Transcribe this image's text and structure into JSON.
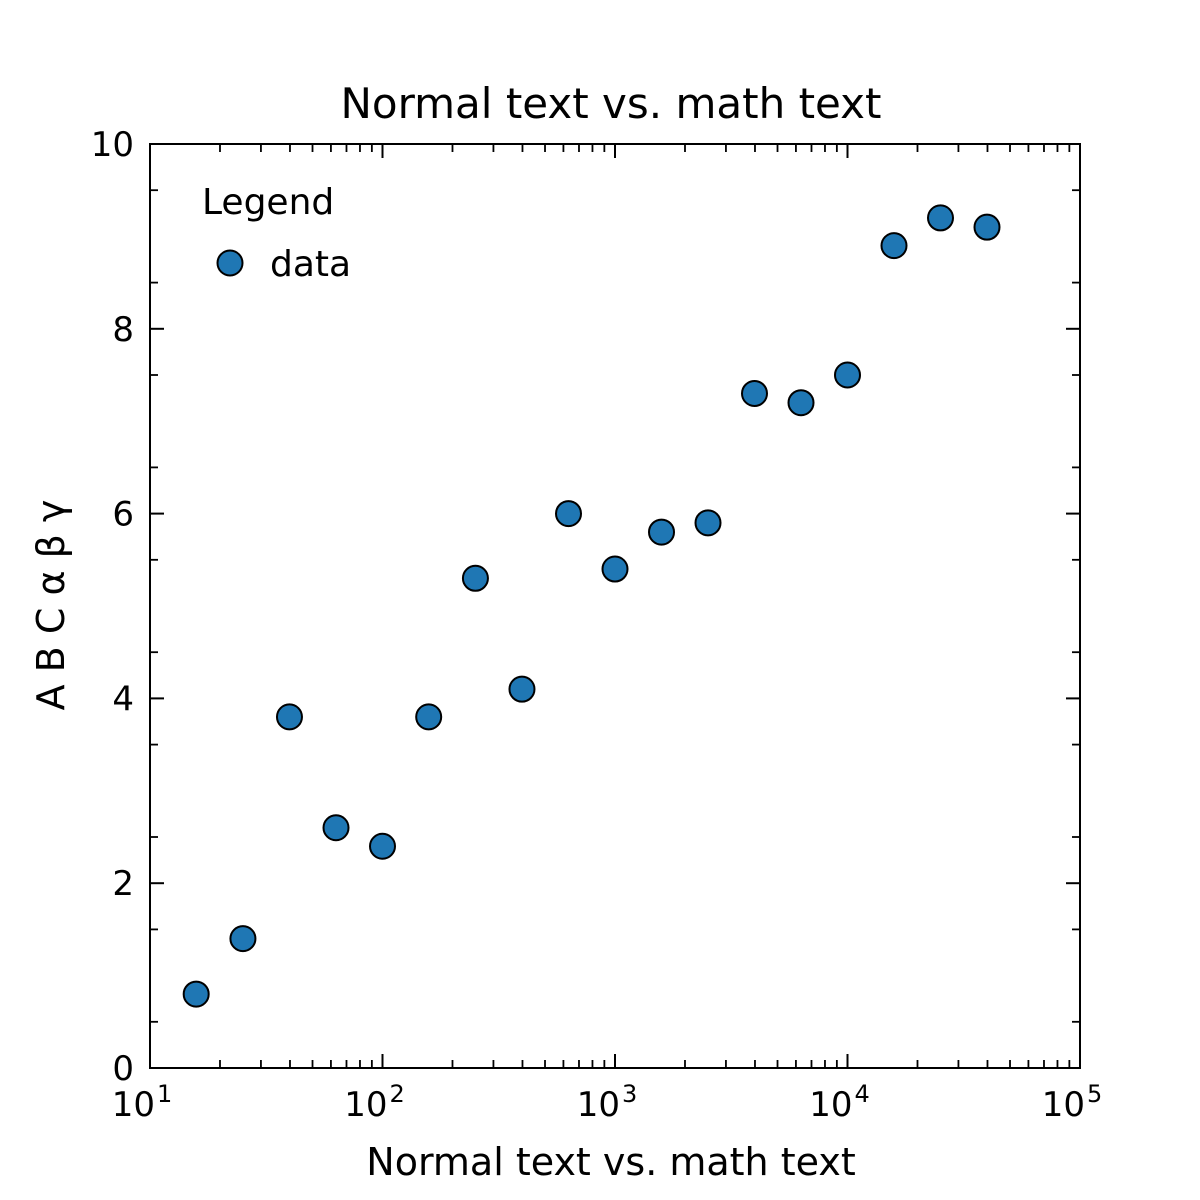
{
  "colors": {
    "point_fill": "#1f77b4",
    "point_edge": "#000000",
    "axis": "#000000",
    "background": "#ffffff"
  },
  "chart_data": {
    "type": "scatter",
    "title": "Normal text vs.  math text",
    "xlabel": "Normal text vs.  math text",
    "ylabel": "A B C α β γ",
    "xscale": "log",
    "xlim": [
      10,
      100000
    ],
    "ylim": [
      0,
      10
    ],
    "grid": false,
    "legend": {
      "title": "Legend",
      "placement": "top-left",
      "entries": [
        "data"
      ]
    },
    "x_ticks": [
      {
        "base": "10",
        "exp": "1"
      },
      {
        "base": "10",
        "exp": "2"
      },
      {
        "base": "10",
        "exp": "3"
      },
      {
        "base": "10",
        "exp": "4"
      },
      {
        "base": "10",
        "exp": "5"
      }
    ],
    "y_ticks": [
      "0",
      "2",
      "4",
      "6",
      "8",
      "10"
    ],
    "series": [
      {
        "name": "data",
        "x": [
          15.8,
          25.1,
          39.8,
          63.1,
          100,
          158,
          251,
          398,
          631,
          1000,
          1585,
          2512,
          3981,
          6310,
          10000,
          15849,
          25119,
          39811
        ],
        "y": [
          0.8,
          1.4,
          3.8,
          2.6,
          2.4,
          3.8,
          5.3,
          4.1,
          6.0,
          5.4,
          5.8,
          5.9,
          7.3,
          7.2,
          7.5,
          8.9,
          9.2,
          9.1
        ]
      }
    ]
  }
}
